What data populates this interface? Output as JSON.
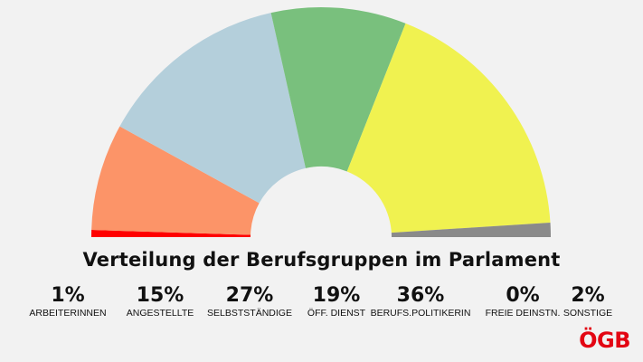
{
  "chart_data": {
    "type": "pie",
    "subtype": "semicircle-parliament",
    "title": "Verteilung der Berufsgruppen im Parlament",
    "series": [
      {
        "label": "ARBEITERINNEN",
        "value_label": "1%",
        "value": 1,
        "color": "#ff0000"
      },
      {
        "label": "ANGESTELLTE",
        "value_label": "15%",
        "value": 15,
        "color": "#fc9468"
      },
      {
        "label": "SELBSTSTÄNDIGE",
        "value_label": "27%",
        "value": 27,
        "color": "#b4cfdb"
      },
      {
        "label": "ÖFF. DIENST",
        "value_label": "19%",
        "value": 19,
        "color": "#79c07d"
      },
      {
        "label": "BERUFS.POLITIKERIN",
        "value_label": "36%",
        "value": 36,
        "color": "#f0f250"
      },
      {
        "label": "FREIE DEINSTN.",
        "value_label": "0%",
        "value": 0,
        "color": "#cccccc"
      },
      {
        "label": "SONSTIGE",
        "value_label": "2%",
        "value": 2,
        "color": "#8a8a8a"
      }
    ],
    "legend_position": "bottom"
  },
  "logo": {
    "text": "ÖGB",
    "color": "#e30613"
  }
}
